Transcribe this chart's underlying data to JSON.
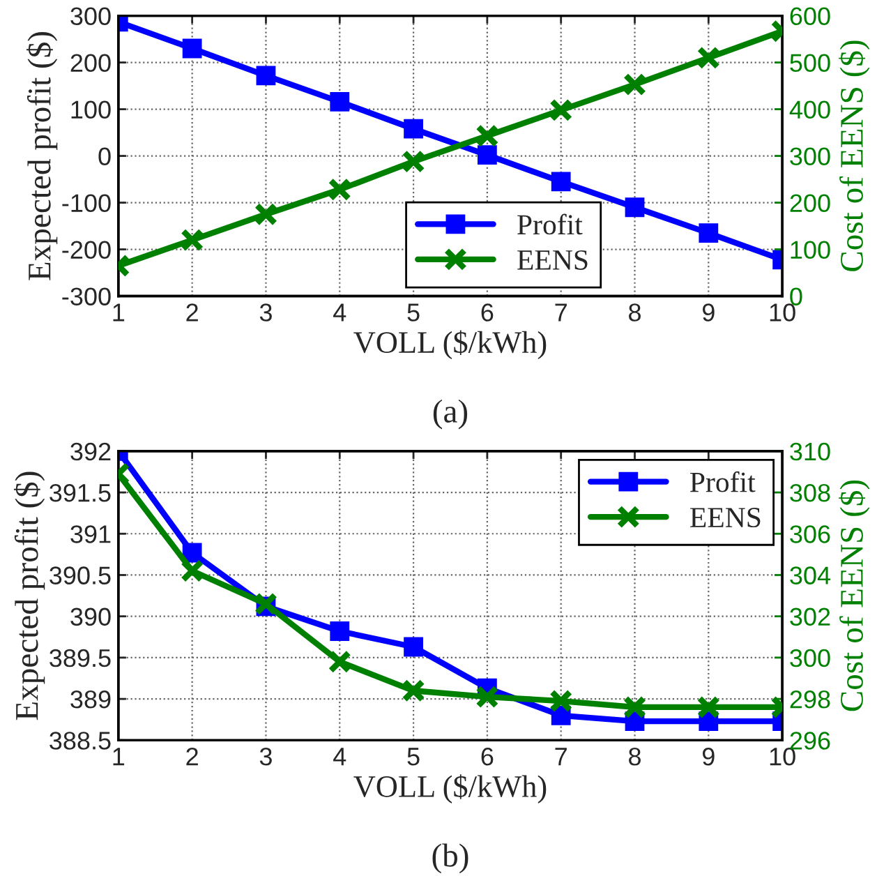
{
  "chart_data": [
    {
      "type": "line",
      "xlabel": "VOLL ($/kWh)",
      "ylabel": "Expected profit ($)",
      "y2label": "Cost of EENS ($)",
      "annotations": [
        "(a)"
      ],
      "x": [
        1,
        2,
        3,
        4,
        5,
        6,
        7,
        8,
        9,
        10
      ],
      "xlim": [
        1,
        10
      ],
      "xticks": [
        1,
        2,
        3,
        4,
        5,
        6,
        7,
        8,
        9,
        10
      ],
      "ylim": [
        -300,
        300
      ],
      "yticks": [
        -300,
        -200,
        -100,
        0,
        100,
        200,
        300
      ],
      "y2lim": [
        0,
        600
      ],
      "y2ticks": [
        0,
        100,
        200,
        300,
        400,
        500,
        600
      ],
      "grid": true,
      "legend": "bottom",
      "series": [
        {
          "name": "Profit",
          "color": "#0000ff",
          "marker": "square",
          "values": [
            287,
            230,
            172,
            116,
            58,
            2,
            -55,
            -110,
            -165,
            -222
          ]
        },
        {
          "name": "EENS",
          "color": "#008000",
          "marker": "cross",
          "axis": "y2",
          "values": [
            65,
            120,
            175,
            228,
            288,
            343,
            398,
            453,
            510,
            567
          ]
        }
      ]
    },
    {
      "type": "line",
      "xlabel": "VOLL ($/kWh)",
      "ylabel": "Expected profit ($)",
      "y2label": "Cost of EENS ($)",
      "annotations": [
        "(b)"
      ],
      "x": [
        1,
        2,
        3,
        4,
        5,
        6,
        7,
        8,
        9,
        10
      ],
      "xlim": [
        1,
        10
      ],
      "xticks": [
        1,
        2,
        3,
        4,
        5,
        6,
        7,
        8,
        9,
        10
      ],
      "ylim": [
        388.5,
        392
      ],
      "yticks": [
        388.5,
        389,
        389.5,
        390,
        390.5,
        391,
        391.5,
        392
      ],
      "y2lim": [
        296,
        310
      ],
      "y2ticks": [
        296,
        298,
        300,
        302,
        304,
        306,
        308,
        310
      ],
      "grid": true,
      "legend": "top right",
      "series": [
        {
          "name": "Profit",
          "color": "#0000ff",
          "marker": "square",
          "values": [
            392.0,
            390.77,
            390.12,
            389.82,
            389.63,
            389.13,
            388.8,
            388.73,
            388.73,
            388.73
          ]
        },
        {
          "name": "EENS",
          "color": "#008000",
          "marker": "cross",
          "axis": "y2",
          "values": [
            308.9,
            304.2,
            302.6,
            299.8,
            298.4,
            298.1,
            297.9,
            297.6,
            297.6,
            297.6
          ]
        }
      ]
    }
  ]
}
